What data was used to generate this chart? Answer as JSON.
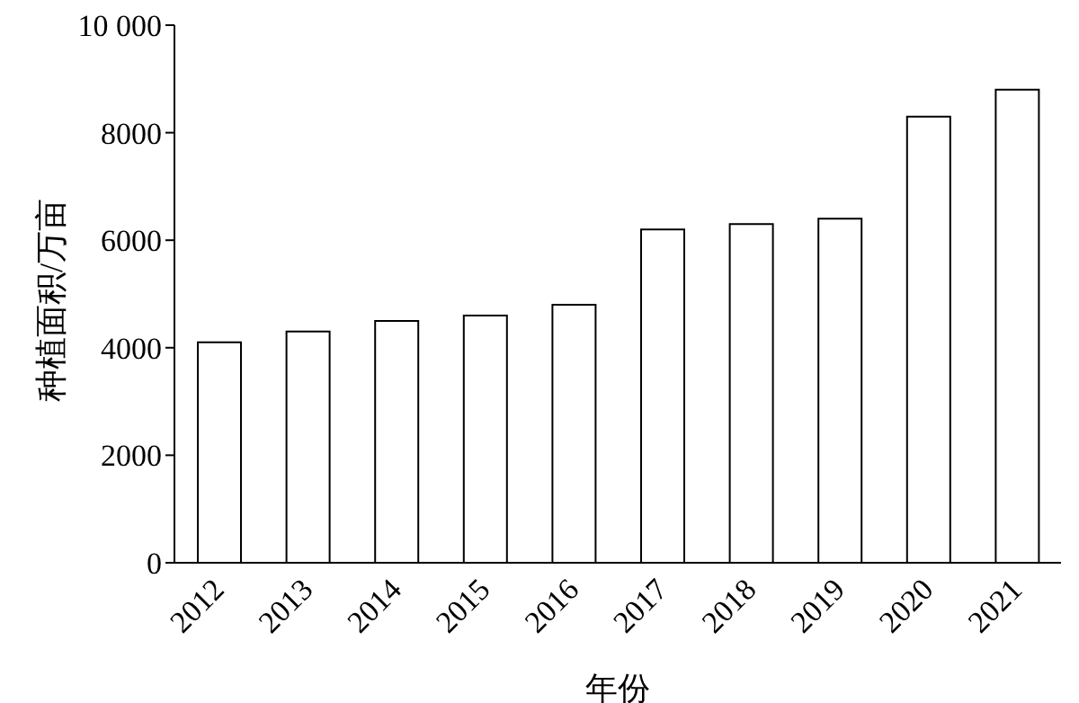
{
  "chart_data": {
    "type": "bar",
    "xlabel": "年份",
    "ylabel": "种植面积/万亩",
    "categories": [
      "2012",
      "2013",
      "2014",
      "2015",
      "2016",
      "2017",
      "2018",
      "2019",
      "2020",
      "2021"
    ],
    "values": [
      4100,
      4300,
      4500,
      4600,
      4800,
      6200,
      6300,
      6400,
      8300,
      8800
    ],
    "color": "#ffffff",
    "ylim": [
      0,
      10000
    ],
    "yticks": [
      0,
      2000,
      4000,
      6000,
      8000,
      {
        "value": 10000,
        "label": "10 000"
      }
    ],
    "grid": false,
    "legend": false
  }
}
